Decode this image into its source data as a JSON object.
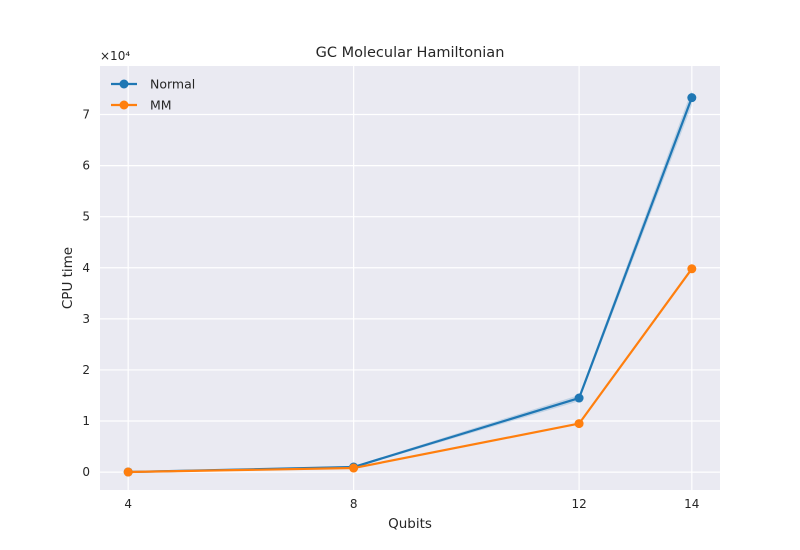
{
  "chart_data": {
    "type": "line",
    "title": "GC Molecular Hamiltonian",
    "xlabel": "Qubits",
    "ylabel": "CPU time",
    "y_offset_label": "×10⁴",
    "y_scale_factor": 10000,
    "x": [
      4,
      8,
      12,
      14
    ],
    "xlim": [
      3.5,
      14.5
    ],
    "ylim": [
      -3500,
      79500
    ],
    "x_ticks": [
      4,
      8,
      12,
      14
    ],
    "y_ticks": [
      0,
      1,
      2,
      3,
      4,
      5,
      6,
      7
    ],
    "grid": true,
    "legend_position": "top-left",
    "series": [
      {
        "name": "Normal",
        "color": "#1f77b4",
        "values": [
          30,
          1000,
          14500,
          73300
        ],
        "band_lower": [
          0,
          800,
          13900,
          71800
        ],
        "band_upper": [
          60,
          1200,
          15100,
          74800
        ]
      },
      {
        "name": "MM",
        "color": "#ff7f0e",
        "values": [
          20,
          800,
          9500,
          39800
        ]
      }
    ]
  }
}
